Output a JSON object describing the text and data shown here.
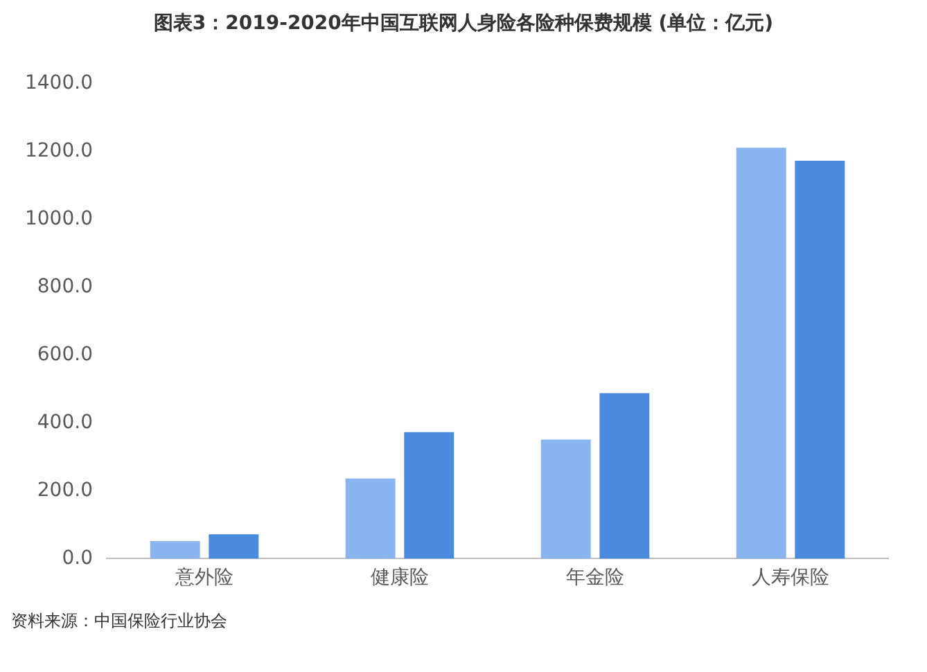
{
  "chart_data": {
    "type": "bar",
    "title": "图表3：2019-2020年中国互联网人身险各险种保费规模 (单位：亿元)",
    "categories": [
      "意外险",
      "健康险",
      "年金险",
      "人寿保险"
    ],
    "series": [
      {
        "color": "#8ab4f0",
        "values": [
          52,
          236,
          351,
          1211
        ]
      },
      {
        "color": "#4a8be0",
        "values": [
          72,
          373,
          488,
          1173
        ]
      }
    ],
    "ylim": [
      0,
      1400
    ],
    "yticks": [
      {
        "value": 0,
        "label": "0.0"
      },
      {
        "value": 200,
        "label": "200.0"
      },
      {
        "value": 400,
        "label": "400.0"
      },
      {
        "value": 600,
        "label": "600.0"
      },
      {
        "value": 800,
        "label": "800.0"
      },
      {
        "value": 1000,
        "label": "1000.0"
      },
      {
        "value": 1200,
        "label": "1200.0"
      },
      {
        "value": 1400,
        "label": "1400.0"
      }
    ],
    "grid": false,
    "legend": false,
    "annotations": [
      "资料来源：中国保险行业协会"
    ]
  }
}
